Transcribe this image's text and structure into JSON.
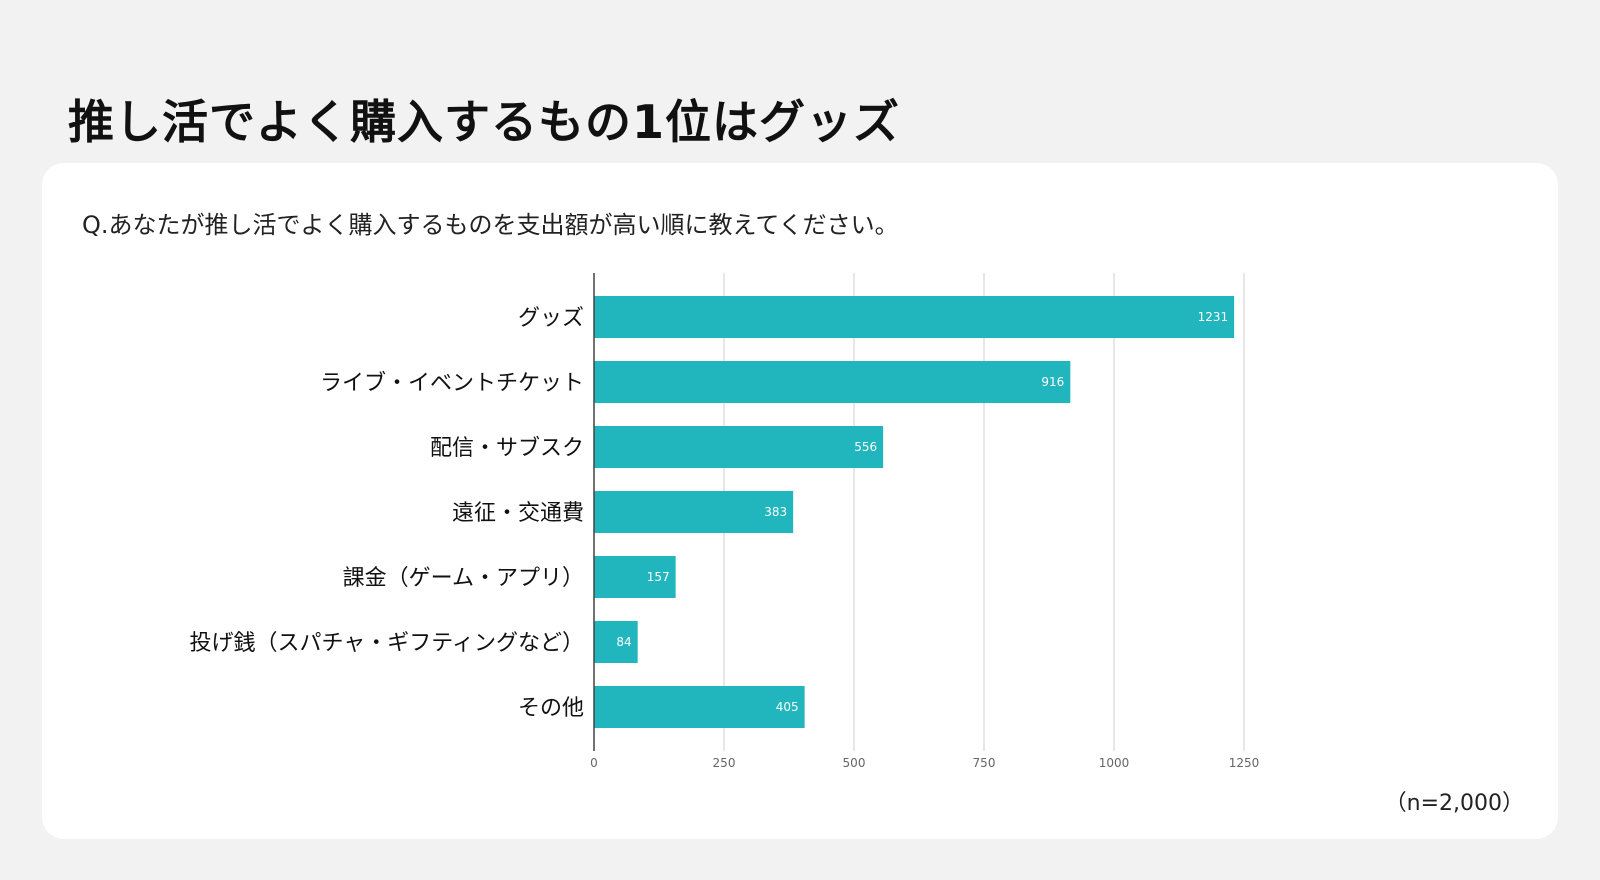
{
  "headline": "推し活でよく購入するもの1位はグッズ",
  "question": "Q.あなたが推し活でよく購入するものを支出額が高い順に教えてください。",
  "sample_note": "（n=2,000）",
  "colors": {
    "bar": "#21b5bd",
    "grid": "#cfcfcf",
    "axis": "#444444",
    "value_label": "#ffffff",
    "tick_label": "#666666",
    "category_label": "#111111"
  },
  "chart_data": {
    "type": "bar",
    "orientation": "horizontal",
    "title": "",
    "xlabel": "",
    "ylabel": "",
    "categories": [
      "グッズ",
      "ライブ・イベントチケット",
      "配信・サブスク",
      "遠征・交通費",
      "課金（ゲーム・アプリ）",
      "投げ銭（スパチャ・ギフティングなど）",
      "その他"
    ],
    "values": [
      1231,
      916,
      556,
      383,
      157,
      84,
      405
    ],
    "xlim": [
      0,
      1250
    ],
    "xticks": [
      0,
      250,
      500,
      750,
      1000,
      1250
    ],
    "grid": true,
    "legend": "none",
    "data_labels": true
  }
}
